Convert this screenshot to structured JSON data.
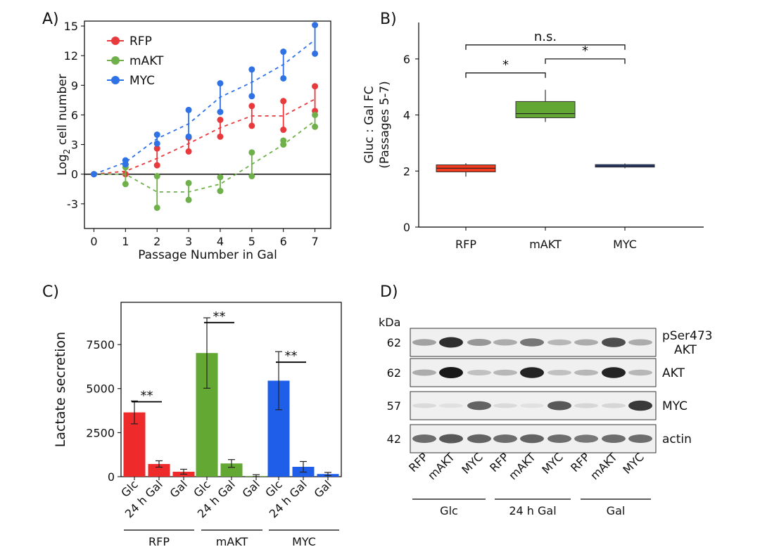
{
  "chart_data": [
    {
      "panel": "A)",
      "type": "scatter",
      "xlabel": "Passage Number in Gal",
      "ylabel_main": "Log",
      "ylabel_sub": "2",
      "ylabel_rest": " cell number",
      "xticks": [
        0,
        1,
        2,
        3,
        4,
        5,
        6,
        7
      ],
      "yticks": [
        -3,
        0,
        3,
        6,
        9,
        12,
        15
      ],
      "yticklabels": [
        "-3",
        "0",
        "3",
        "6",
        "9",
        "12",
        "15"
      ],
      "xlim": [
        -0.3,
        7.5
      ],
      "ylim": [
        -5.5,
        15.5
      ],
      "legend_position": "top-left",
      "series": [
        {
          "name": "RFP",
          "color": "#e8393d",
          "trend_x": [
            0,
            1,
            2,
            3,
            4,
            5,
            6,
            7
          ],
          "trend_y": [
            0,
            0.3,
            1.6,
            3.1,
            4.7,
            5.9,
            5.9,
            7.6
          ],
          "ranges": [
            [
              0,
              0,
              0
            ],
            [
              1,
              0,
              1.0
            ],
            [
              2,
              0.9,
              2.6
            ],
            [
              3,
              2.3,
              3.7
            ],
            [
              4,
              3.8,
              5.5
            ],
            [
              5,
              4.9,
              6.9
            ],
            [
              6,
              4.5,
              7.4
            ],
            [
              7,
              6.4,
              8.9
            ]
          ]
        },
        {
          "name": "mAKT",
          "color": "#6fb04a",
          "trend_x": [
            0,
            1,
            2,
            3,
            4,
            5,
            6,
            7
          ],
          "trend_y": [
            0,
            0.0,
            -1.8,
            -1.8,
            -1.0,
            1.0,
            3.0,
            5.4
          ],
          "ranges": [
            [
              0,
              0,
              0
            ],
            [
              1,
              -1.0,
              0.7
            ],
            [
              2,
              -3.4,
              -0.2
            ],
            [
              3,
              -2.6,
              -0.9
            ],
            [
              4,
              -1.7,
              -0.3
            ],
            [
              5,
              -0.2,
              2.2
            ],
            [
              6,
              3.0,
              3.4
            ],
            [
              7,
              4.8,
              6.0
            ]
          ]
        },
        {
          "name": "MYC",
          "color": "#2f72e6",
          "trend_x": [
            0,
            1,
            2,
            3,
            4,
            5,
            6,
            7
          ],
          "trend_y": [
            0,
            1.2,
            3.6,
            5.1,
            7.8,
            9.3,
            11.1,
            13.6
          ],
          "ranges": [
            [
              0,
              0,
              0
            ],
            [
              1,
              1.0,
              1.4
            ],
            [
              2,
              3.1,
              4.0
            ],
            [
              3,
              3.8,
              6.5
            ],
            [
              4,
              6.3,
              9.2
            ],
            [
              5,
              7.9,
              10.6
            ],
            [
              6,
              9.7,
              12.4
            ],
            [
              7,
              12.2,
              15.1
            ]
          ]
        }
      ]
    },
    {
      "panel": "B)",
      "type": "box",
      "ylabel_line1": "Gluc : Gal FC",
      "ylabel_line2": "(Passages 5-7)",
      "categories": [
        "RFP",
        "mAKT",
        "MYC"
      ],
      "ylim": [
        0,
        7.3
      ],
      "yticks": [
        0,
        2,
        4,
        6
      ],
      "boxes": [
        {
          "name": "RFP",
          "color": "#f23c1f",
          "min": 1.8,
          "q1": 1.97,
          "median": 2.1,
          "q3": 2.22,
          "max": 2.28
        },
        {
          "name": "mAKT",
          "color": "#62a733",
          "min": 3.75,
          "q1": 3.9,
          "median": 4.05,
          "q3": 4.48,
          "max": 4.9
        },
        {
          "name": "MYC",
          "color": "#2248a8",
          "min": 2.1,
          "q1": 2.14,
          "median": 2.18,
          "q3": 2.23,
          "max": 2.27
        }
      ],
      "significance": [
        {
          "from": "RFP",
          "to": "MYC",
          "label": "n.s.",
          "y": 6.5
        },
        {
          "from": "RFP",
          "to": "mAKT",
          "label": "*",
          "y": 5.5
        },
        {
          "from": "mAKT",
          "to": "MYC",
          "label": "*",
          "y": 6.0
        }
      ]
    },
    {
      "panel": "C)",
      "type": "bar",
      "ylabel": "Lactate secretion",
      "ylim": [
        0,
        9900
      ],
      "yticks": [
        0,
        2500,
        5000,
        7500
      ],
      "yticklabels": [
        "0",
        "2500",
        "5000",
        "7500"
      ],
      "group_labels": [
        "RFP",
        "mAKT",
        "MYC"
      ],
      "bar_labels": [
        "Glc",
        "24 h Gal",
        "Gal",
        "Glc",
        "24 h Gal",
        "Gal",
        "Glc",
        "24 h Gal",
        "Gal"
      ],
      "values": [
        3650,
        720,
        280,
        7020,
        750,
        30,
        5450,
        560,
        150
      ],
      "errors": [
        650,
        180,
        140,
        2000,
        220,
        80,
        1650,
        300,
        90
      ],
      "colors": [
        "#ee2a2a",
        "#ee2a2a",
        "#ee2a2a",
        "#63a832",
        "#63a832",
        "#63a832",
        "#1f5ee8",
        "#1f5ee8",
        "#1f5ee8"
      ],
      "significance": [
        {
          "bars": [
            0,
            1
          ],
          "label": "**",
          "y": 4250
        },
        {
          "bars": [
            3,
            4
          ],
          "label": "**",
          "y": 8750
        },
        {
          "bars": [
            6,
            7
          ],
          "label": "**",
          "y": 6500
        }
      ]
    }
  ],
  "western": {
    "panel": "D)",
    "unit": "kDa",
    "rows": [
      {
        "mw": "62",
        "label_line1": "pSer473",
        "label_line2": "AKT",
        "intensities": [
          0.35,
          0.9,
          0.4,
          0.3,
          0.55,
          0.25,
          0.3,
          0.75,
          0.3
        ]
      },
      {
        "mw": "62",
        "label_line1": "AKT",
        "label_line2": "",
        "intensities": [
          0.3,
          1.0,
          0.2,
          0.25,
          0.95,
          0.2,
          0.25,
          0.95,
          0.25
        ]
      },
      {
        "mw": "57",
        "label_line1": "MYC",
        "label_line2": "",
        "intensities": [
          0.08,
          0.05,
          0.65,
          0.08,
          0.05,
          0.7,
          0.1,
          0.1,
          0.85
        ]
      },
      {
        "mw": "42",
        "label_line1": "actin",
        "label_line2": "",
        "intensities": [
          0.6,
          0.7,
          0.65,
          0.6,
          0.65,
          0.6,
          0.55,
          0.6,
          0.6
        ]
      }
    ],
    "lane_labels": [
      "RFP",
      "mAKT",
      "MYC",
      "RFP",
      "mAKT",
      "MYC",
      "RFP",
      "mAKT",
      "MYC"
    ],
    "group_labels": [
      "Glc",
      "24 h Gal",
      "Gal"
    ]
  }
}
